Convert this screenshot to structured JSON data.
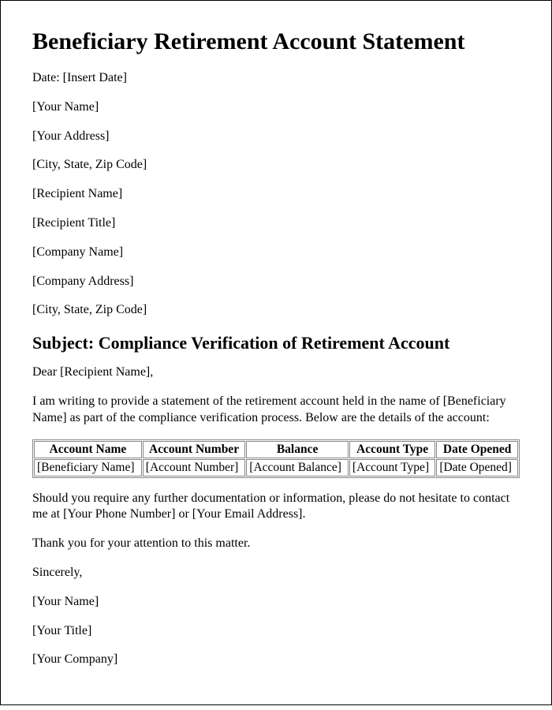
{
  "title": "Beneficiary Retirement Account Statement",
  "header_lines": [
    "Date: [Insert Date]",
    "[Your Name]",
    "[Your Address]",
    "[City, State, Zip Code]",
    "[Recipient Name]",
    "[Recipient Title]",
    "[Company Name]",
    "[Company Address]",
    "[City, State, Zip Code]"
  ],
  "subject": "Subject: Compliance Verification of Retirement Account",
  "salutation": "Dear [Recipient Name],",
  "intro": "I am writing to provide a statement of the retirement account held in the name of [Beneficiary Name] as part of the compliance verification process. Below are the details of the account:",
  "table": {
    "columns": [
      "Account Name",
      "Account Number",
      "Balance",
      "Account Type",
      "Date Opened"
    ],
    "rows": [
      [
        "[Beneficiary Name]",
        "[Account Number]",
        "[Account Balance]",
        "[Account Type]",
        "[Date Opened]"
      ]
    ]
  },
  "followup": "Should you require any further documentation or information, please do not hesitate to contact me at [Your Phone Number] or [Your Email Address].",
  "thanks": "Thank you for your attention to this matter.",
  "closing": "Sincerely,",
  "sig_lines": [
    "[Your Name]",
    "[Your Title]",
    "[Your Company]"
  ]
}
